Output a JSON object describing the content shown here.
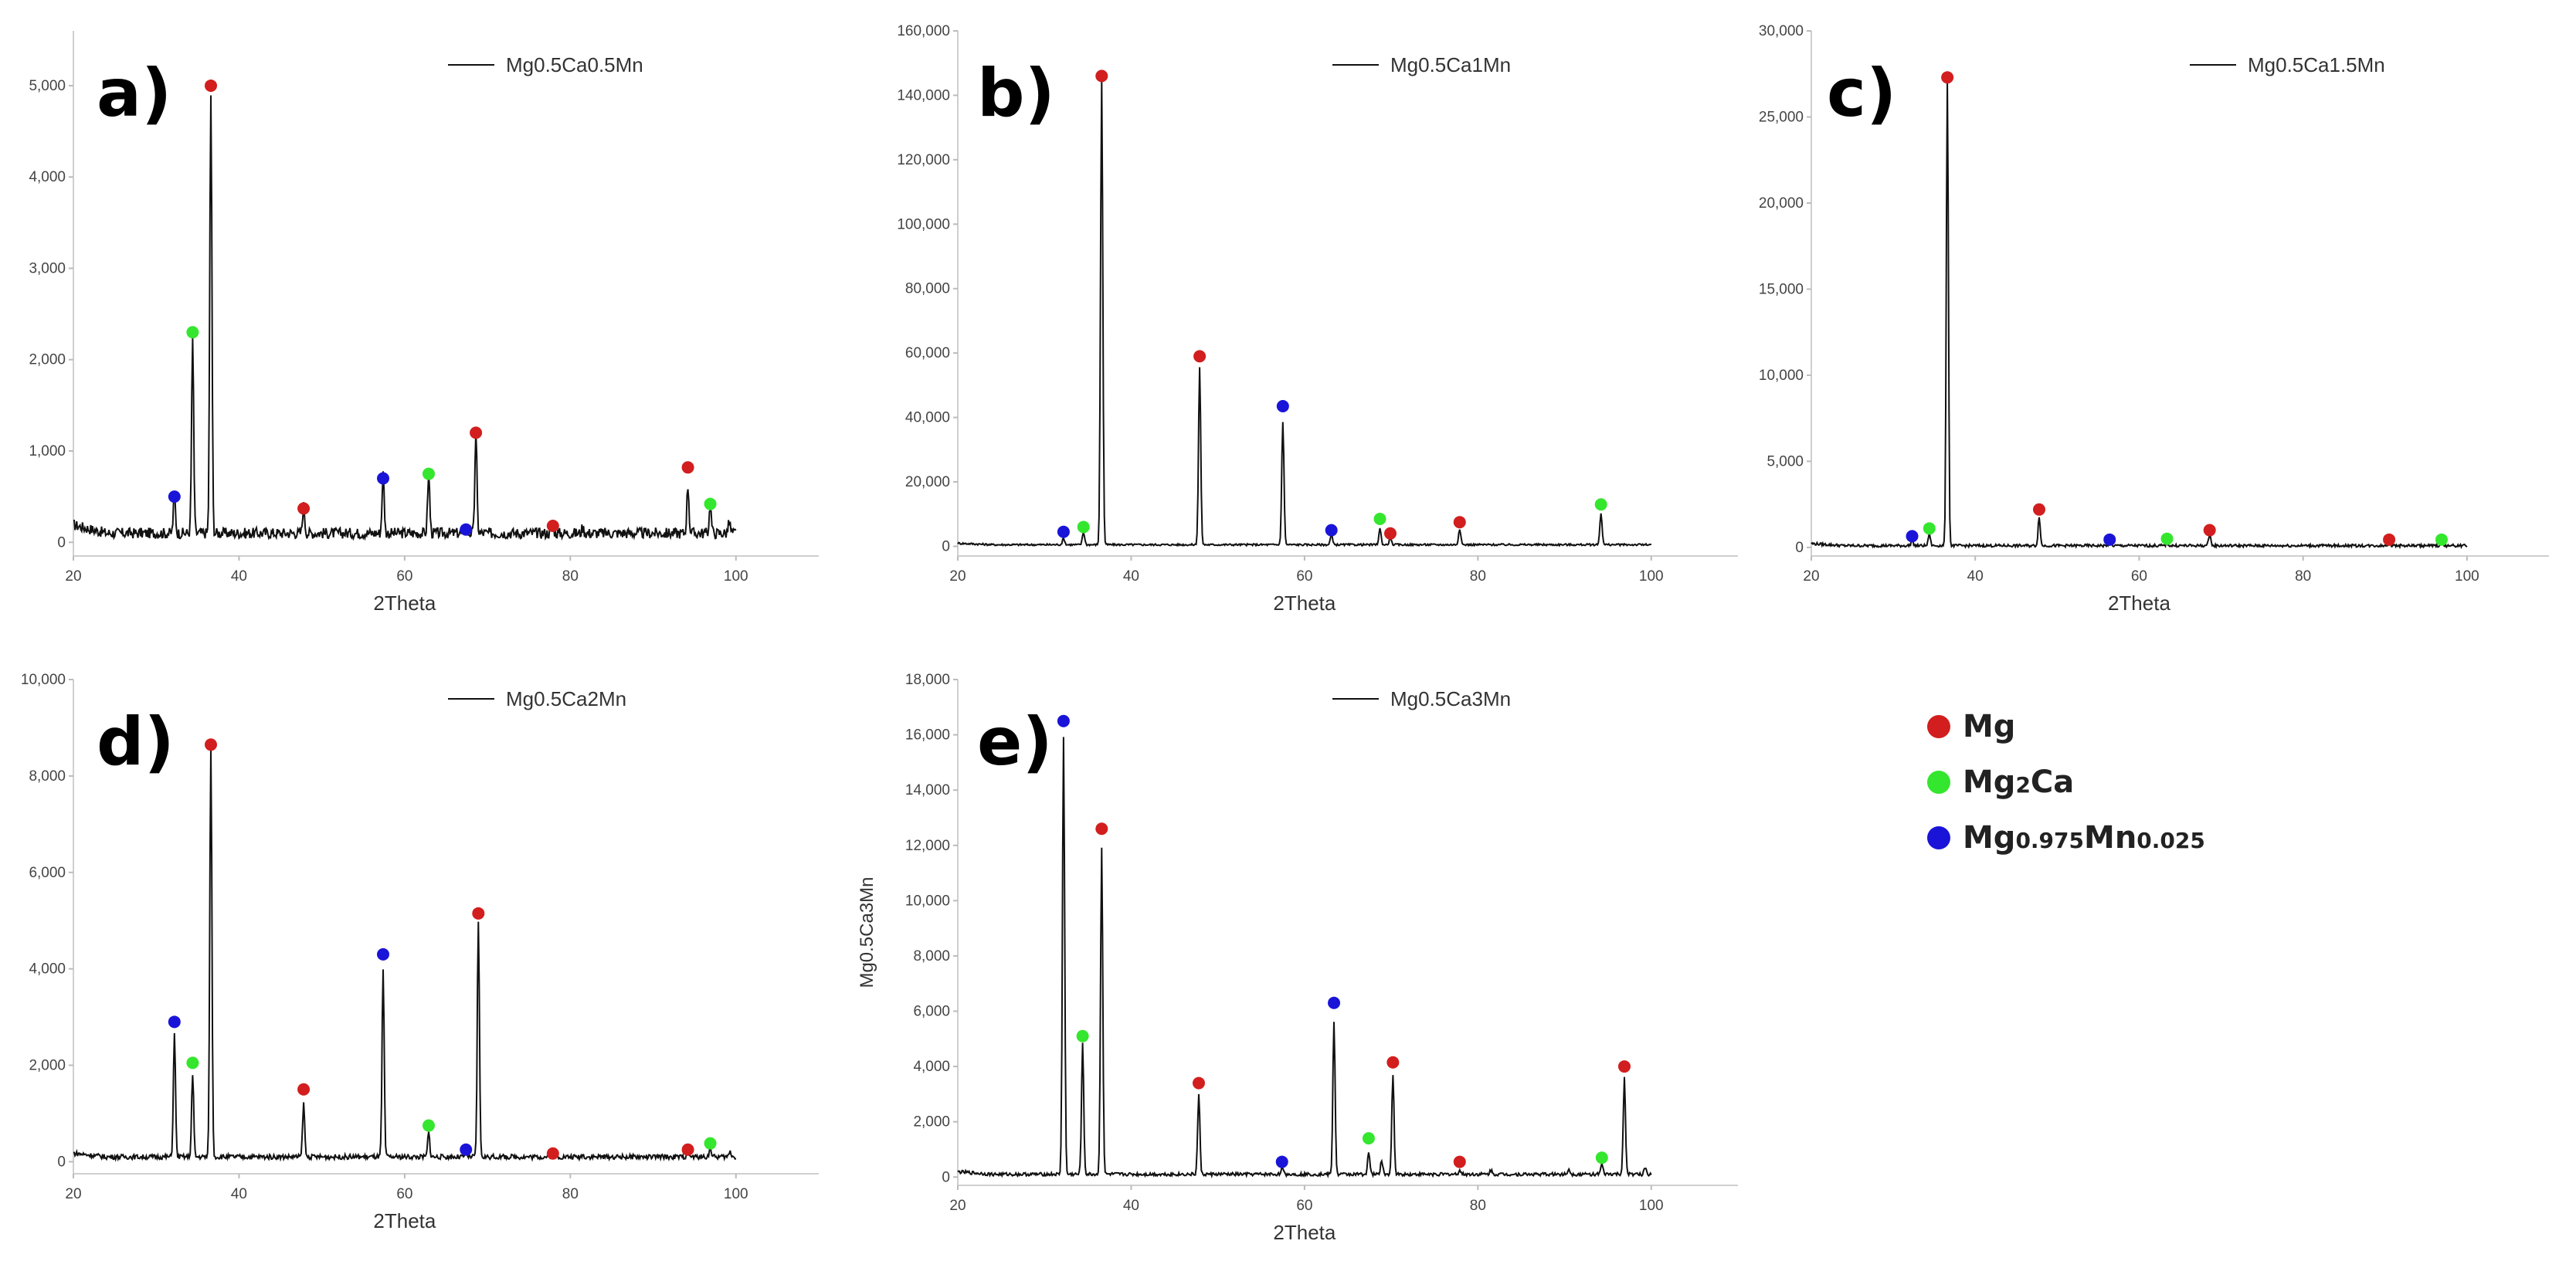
{
  "figure": {
    "phase_legend": {
      "mg": "Mg",
      "mg2ca_main": "Mg",
      "mg2ca_sub": "2",
      "mg2ca_tail": "Ca",
      "mgmn_a": "Mg",
      "mgmn_b": "0.975",
      "mgmn_c": "Mn",
      "mgmn_d": "0.025"
    }
  },
  "chart_data": [
    {
      "panel_label": "a)",
      "type": "line",
      "series_name": "Mg0.5Ca0.5Mn",
      "xlabel": "2Theta",
      "ylabel": "",
      "xlim": [
        20,
        110
      ],
      "ylim": [
        -150,
        5600
      ],
      "xticks": [
        20,
        40,
        60,
        80,
        100
      ],
      "yticks": [
        0,
        1000,
        2000,
        3000,
        4000,
        5000
      ],
      "ytick_labels": [
        "0",
        "1,000",
        "2,000",
        "3,000",
        "4,000",
        "5,000"
      ],
      "baseline": 100,
      "noise": 60,
      "peaks": [
        [
          32.2,
          420
        ],
        [
          34.4,
          2100
        ],
        [
          36.6,
          4800
        ],
        [
          47.8,
          300
        ],
        [
          57.4,
          650
        ],
        [
          62.9,
          650
        ],
        [
          67.4,
          80
        ],
        [
          68.6,
          1080
        ],
        [
          77.9,
          60
        ],
        [
          81.5,
          60
        ],
        [
          94.2,
          520
        ],
        [
          96.9,
          300
        ],
        [
          99.2,
          120
        ]
      ],
      "markers": [
        {
          "x": 32.2,
          "y": 500,
          "phase": "Mg0.975Mn0.025",
          "color": "#1a14d8"
        },
        {
          "x": 34.4,
          "y": 2300,
          "phase": "Mg2Ca",
          "color": "#34e62e"
        },
        {
          "x": 36.6,
          "y": 5000,
          "phase": "Mg",
          "color": "#d21e1e"
        },
        {
          "x": 47.8,
          "y": 370,
          "phase": "Mg",
          "color": "#d21e1e"
        },
        {
          "x": 57.4,
          "y": 700,
          "phase": "Mg0.975Mn0.025",
          "color": "#1a14d8"
        },
        {
          "x": 62.9,
          "y": 750,
          "phase": "Mg2Ca",
          "color": "#34e62e"
        },
        {
          "x": 67.4,
          "y": 140,
          "phase": "Mg0.975Mn0.025",
          "color": "#1a14d8"
        },
        {
          "x": 68.6,
          "y": 1200,
          "phase": "Mg",
          "color": "#d21e1e"
        },
        {
          "x": 77.9,
          "y": 180,
          "phase": "Mg",
          "color": "#d21e1e"
        },
        {
          "x": 94.2,
          "y": 820,
          "phase": "Mg",
          "color": "#d21e1e"
        },
        {
          "x": 96.9,
          "y": 420,
          "phase": "Mg2Ca",
          "color": "#34e62e"
        }
      ]
    },
    {
      "panel_label": "b)",
      "type": "line",
      "series_name": "Mg0.5Ca1Mn",
      "xlabel": "2Theta",
      "ylabel": "",
      "xlim": [
        20,
        110
      ],
      "ylim": [
        -3000,
        160000
      ],
      "xticks": [
        20,
        40,
        60,
        80,
        100
      ],
      "yticks": [
        0,
        20000,
        40000,
        60000,
        80000,
        100000,
        120000,
        140000,
        160000
      ],
      "ytick_labels": [
        "0",
        "20,000",
        "40,000",
        "60,000",
        "80,000",
        "100,000",
        "120,000",
        "140,000",
        "160,000"
      ],
      "baseline": 500,
      "noise": 300,
      "peaks": [
        [
          32.2,
          2000
        ],
        [
          34.5,
          4000
        ],
        [
          36.6,
          145000
        ],
        [
          47.9,
          55000
        ],
        [
          57.5,
          38000
        ],
        [
          63.1,
          3000
        ],
        [
          68.7,
          5000
        ],
        [
          69.9,
          2000
        ],
        [
          77.9,
          5000
        ],
        [
          94.2,
          10000
        ]
      ],
      "markers": [
        {
          "x": 32.2,
          "y": 4500,
          "phase": "Mg0.975Mn0.025",
          "color": "#1a14d8"
        },
        {
          "x": 34.5,
          "y": 6000,
          "phase": "Mg2Ca",
          "color": "#34e62e"
        },
        {
          "x": 36.6,
          "y": 146000,
          "phase": "Mg",
          "color": "#d21e1e"
        },
        {
          "x": 47.9,
          "y": 59000,
          "phase": "Mg",
          "color": "#d21e1e"
        },
        {
          "x": 57.5,
          "y": 43500,
          "phase": "Mg0.975Mn0.025",
          "color": "#1a14d8"
        },
        {
          "x": 63.1,
          "y": 5000,
          "phase": "Mg0.975Mn0.025",
          "color": "#1a14d8"
        },
        {
          "x": 68.7,
          "y": 8500,
          "phase": "Mg2Ca",
          "color": "#34e62e"
        },
        {
          "x": 69.9,
          "y": 4000,
          "phase": "Mg",
          "color": "#d21e1e"
        },
        {
          "x": 77.9,
          "y": 7500,
          "phase": "Mg",
          "color": "#d21e1e"
        },
        {
          "x": 94.2,
          "y": 13000,
          "phase": "Mg2Ca",
          "color": "#34e62e"
        }
      ]
    },
    {
      "panel_label": "c)",
      "type": "line",
      "series_name": "Mg0.5Ca1.5Mn",
      "xlabel": "2Theta",
      "ylabel": "",
      "xlim": [
        20,
        110
      ],
      "ylim": [
        -500,
        30000
      ],
      "xticks": [
        20,
        40,
        60,
        80,
        100
      ],
      "yticks": [
        0,
        5000,
        10000,
        15000,
        20000,
        25000,
        30000
      ],
      "ytick_labels": [
        "0",
        "5,000",
        "10,000",
        "15,000",
        "20,000",
        "25,000",
        "30,000"
      ],
      "baseline": 100,
      "noise": 80,
      "peaks": [
        [
          32.3,
          350
        ],
        [
          34.4,
          700
        ],
        [
          36.6,
          27000
        ],
        [
          47.8,
          1700
        ],
        [
          56.4,
          200
        ],
        [
          63.4,
          150
        ],
        [
          68.6,
          700
        ],
        [
          90.5,
          200
        ],
        [
          96.9,
          200
        ]
      ],
      "markers": [
        {
          "x": 32.3,
          "y": 650,
          "phase": "Mg0.975Mn0.025",
          "color": "#1a14d8"
        },
        {
          "x": 34.4,
          "y": 1100,
          "phase": "Mg2Ca",
          "color": "#34e62e"
        },
        {
          "x": 36.6,
          "y": 27300,
          "phase": "Mg",
          "color": "#d21e1e"
        },
        {
          "x": 47.8,
          "y": 2200,
          "phase": "Mg",
          "color": "#d21e1e"
        },
        {
          "x": 56.4,
          "y": 450,
          "phase": "Mg0.975Mn0.025",
          "color": "#1a14d8"
        },
        {
          "x": 63.4,
          "y": 500,
          "phase": "Mg2Ca",
          "color": "#34e62e"
        },
        {
          "x": 68.6,
          "y": 1000,
          "phase": "Mg",
          "color": "#d21e1e"
        },
        {
          "x": 90.5,
          "y": 450,
          "phase": "Mg",
          "color": "#d21e1e"
        },
        {
          "x": 96.9,
          "y": 450,
          "phase": "Mg2Ca",
          "color": "#34e62e"
        }
      ]
    },
    {
      "panel_label": "d)",
      "type": "line",
      "series_name": "Mg0.5Ca2Mn",
      "xlabel": "2Theta",
      "ylabel": "",
      "xlim": [
        20,
        110
      ],
      "ylim": [
        -250,
        10000
      ],
      "xticks": [
        20,
        40,
        60,
        80,
        100
      ],
      "yticks": [
        0,
        2000,
        4000,
        6000,
        8000,
        10000
      ],
      "ytick_labels": [
        "0",
        "2,000",
        "4,000",
        "6,000",
        "8,000",
        "10,000"
      ],
      "baseline": 100,
      "noise": 50,
      "peaks": [
        [
          32.2,
          2550
        ],
        [
          34.4,
          1700
        ],
        [
          36.6,
          8450
        ],
        [
          47.8,
          1100
        ],
        [
          57.4,
          3850
        ],
        [
          62.9,
          500
        ],
        [
          67.4,
          80
        ],
        [
          68.9,
          4850
        ],
        [
          77.9,
          60
        ],
        [
          81.5,
          40
        ],
        [
          94.2,
          180
        ],
        [
          96.9,
          200
        ],
        [
          99.3,
          120
        ]
      ],
      "markers": [
        {
          "x": 32.2,
          "y": 2900,
          "phase": "Mg0.975Mn0.025",
          "color": "#1a14d8"
        },
        {
          "x": 34.4,
          "y": 2050,
          "phase": "Mg2Ca",
          "color": "#34e62e"
        },
        {
          "x": 36.6,
          "y": 8650,
          "phase": "Mg",
          "color": "#d21e1e"
        },
        {
          "x": 47.8,
          "y": 1500,
          "phase": "Mg",
          "color": "#d21e1e"
        },
        {
          "x": 57.4,
          "y": 4300,
          "phase": "Mg0.975Mn0.025",
          "color": "#1a14d8"
        },
        {
          "x": 62.9,
          "y": 750,
          "phase": "Mg2Ca",
          "color": "#34e62e"
        },
        {
          "x": 67.4,
          "y": 250,
          "phase": "Mg0.975Mn0.025",
          "color": "#1a14d8"
        },
        {
          "x": 68.9,
          "y": 5150,
          "phase": "Mg",
          "color": "#d21e1e"
        },
        {
          "x": 77.9,
          "y": 170,
          "phase": "Mg",
          "color": "#d21e1e"
        },
        {
          "x": 94.2,
          "y": 250,
          "phase": "Mg",
          "color": "#d21e1e"
        },
        {
          "x": 96.9,
          "y": 380,
          "phase": "Mg2Ca",
          "color": "#34e62e"
        }
      ]
    },
    {
      "panel_label": "e)",
      "type": "line",
      "series_name": "Mg0.5Ca3Mn",
      "xlabel": "2Theta",
      "ylabel": "Mg0.5Ca3Mn",
      "xlim": [
        20,
        110
      ],
      "ylim": [
        -300,
        18000
      ],
      "xticks": [
        20,
        40,
        60,
        80,
        100
      ],
      "yticks": [
        0,
        2000,
        4000,
        6000,
        8000,
        10000,
        12000,
        14000,
        16000,
        18000
      ],
      "ytick_labels": [
        "0",
        "2,000",
        "4,000",
        "6,000",
        "8,000",
        "10,000",
        "12,000",
        "14,000",
        "16,000",
        "18,000"
      ],
      "baseline": 100,
      "noise": 60,
      "peaks": [
        [
          32.2,
          15800
        ],
        [
          34.4,
          4700
        ],
        [
          36.6,
          11800
        ],
        [
          47.8,
          2900
        ],
        [
          57.4,
          250
        ],
        [
          63.4,
          5500
        ],
        [
          67.4,
          800
        ],
        [
          68.9,
          500
        ],
        [
          70.2,
          3600
        ],
        [
          77.9,
          150
        ],
        [
          81.5,
          150
        ],
        [
          90.5,
          200
        ],
        [
          94.3,
          350
        ],
        [
          96.9,
          3500
        ],
        [
          99.3,
          250
        ]
      ],
      "markers": [
        {
          "x": 32.2,
          "y": 16500,
          "phase": "Mg0.975Mn0.025",
          "color": "#1a14d8"
        },
        {
          "x": 34.4,
          "y": 5100,
          "phase": "Mg2Ca",
          "color": "#34e62e"
        },
        {
          "x": 36.6,
          "y": 12600,
          "phase": "Mg",
          "color": "#d21e1e"
        },
        {
          "x": 47.8,
          "y": 3400,
          "phase": "Mg",
          "color": "#d21e1e"
        },
        {
          "x": 57.4,
          "y": 550,
          "phase": "Mg0.975Mn0.025",
          "color": "#1a14d8"
        },
        {
          "x": 63.4,
          "y": 6300,
          "phase": "Mg0.975Mn0.025",
          "color": "#1a14d8"
        },
        {
          "x": 67.4,
          "y": 1400,
          "phase": "Mg2Ca",
          "color": "#34e62e"
        },
        {
          "x": 70.2,
          "y": 4150,
          "phase": "Mg",
          "color": "#d21e1e"
        },
        {
          "x": 77.9,
          "y": 550,
          "phase": "Mg",
          "color": "#d21e1e"
        },
        {
          "x": 94.3,
          "y": 700,
          "phase": "Mg2Ca",
          "color": "#34e62e"
        },
        {
          "x": 96.9,
          "y": 4000,
          "phase": "Mg",
          "color": "#d21e1e"
        }
      ]
    }
  ]
}
